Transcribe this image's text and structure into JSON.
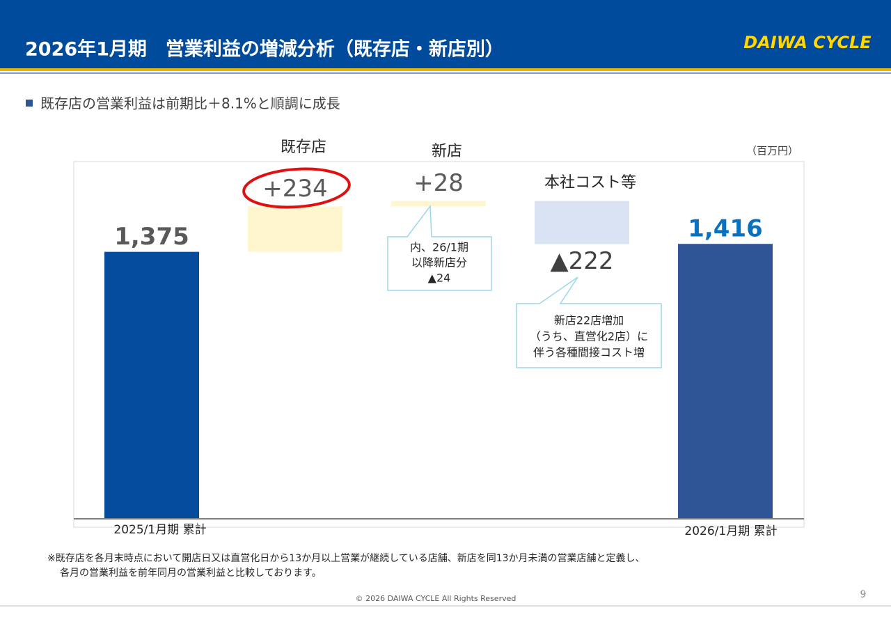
{
  "header": {
    "title": "2026年1月期　営業利益の増減分析（既存店・新店別）",
    "logo": "DAIWA CYCLE"
  },
  "bullet": "既存店の営業利益は前期比＋8.1%と順調に成長",
  "chart_data": {
    "type": "waterfall",
    "unit": "（百万円）",
    "categories": [
      "2025/1月期 累計",
      "既存店",
      "新店",
      "本社コスト等",
      "2026/1月期 累計"
    ],
    "values": [
      1375,
      234,
      28,
      -222,
      1416
    ],
    "value_labels": [
      "1,375",
      "+234",
      "+28",
      "▲222",
      "1,416"
    ],
    "colors": [
      "#054c9c",
      "#fdf6cf",
      "#fdf6cf",
      "#dae3f3",
      "#2f5597"
    ],
    "value_label_colors": [
      "#595959",
      "#595959",
      "#595959",
      "#404040",
      "#0a70c0"
    ],
    "ylim": [
      0,
      1840
    ],
    "annotations": [
      {
        "lines": [
          "内、26/1期",
          "以降新店分",
          "▲24"
        ]
      },
      {
        "lines": [
          "新店22店増加",
          "（うち、直営化2店）に",
          "伴う各種間接コスト増"
        ]
      }
    ]
  },
  "footnote": [
    "※既存店を各月末時点において開店日又は直営化日から13か月以上営業が継続している店舗、新店を同13か月未満の営業店舗と定義し、",
    "各月の営業利益を前年同月の営業利益と比較しております。"
  ],
  "footer": {
    "copyright": "© 2026 DAIWA CYCLE All Rights Reserved",
    "page_number": "9"
  }
}
